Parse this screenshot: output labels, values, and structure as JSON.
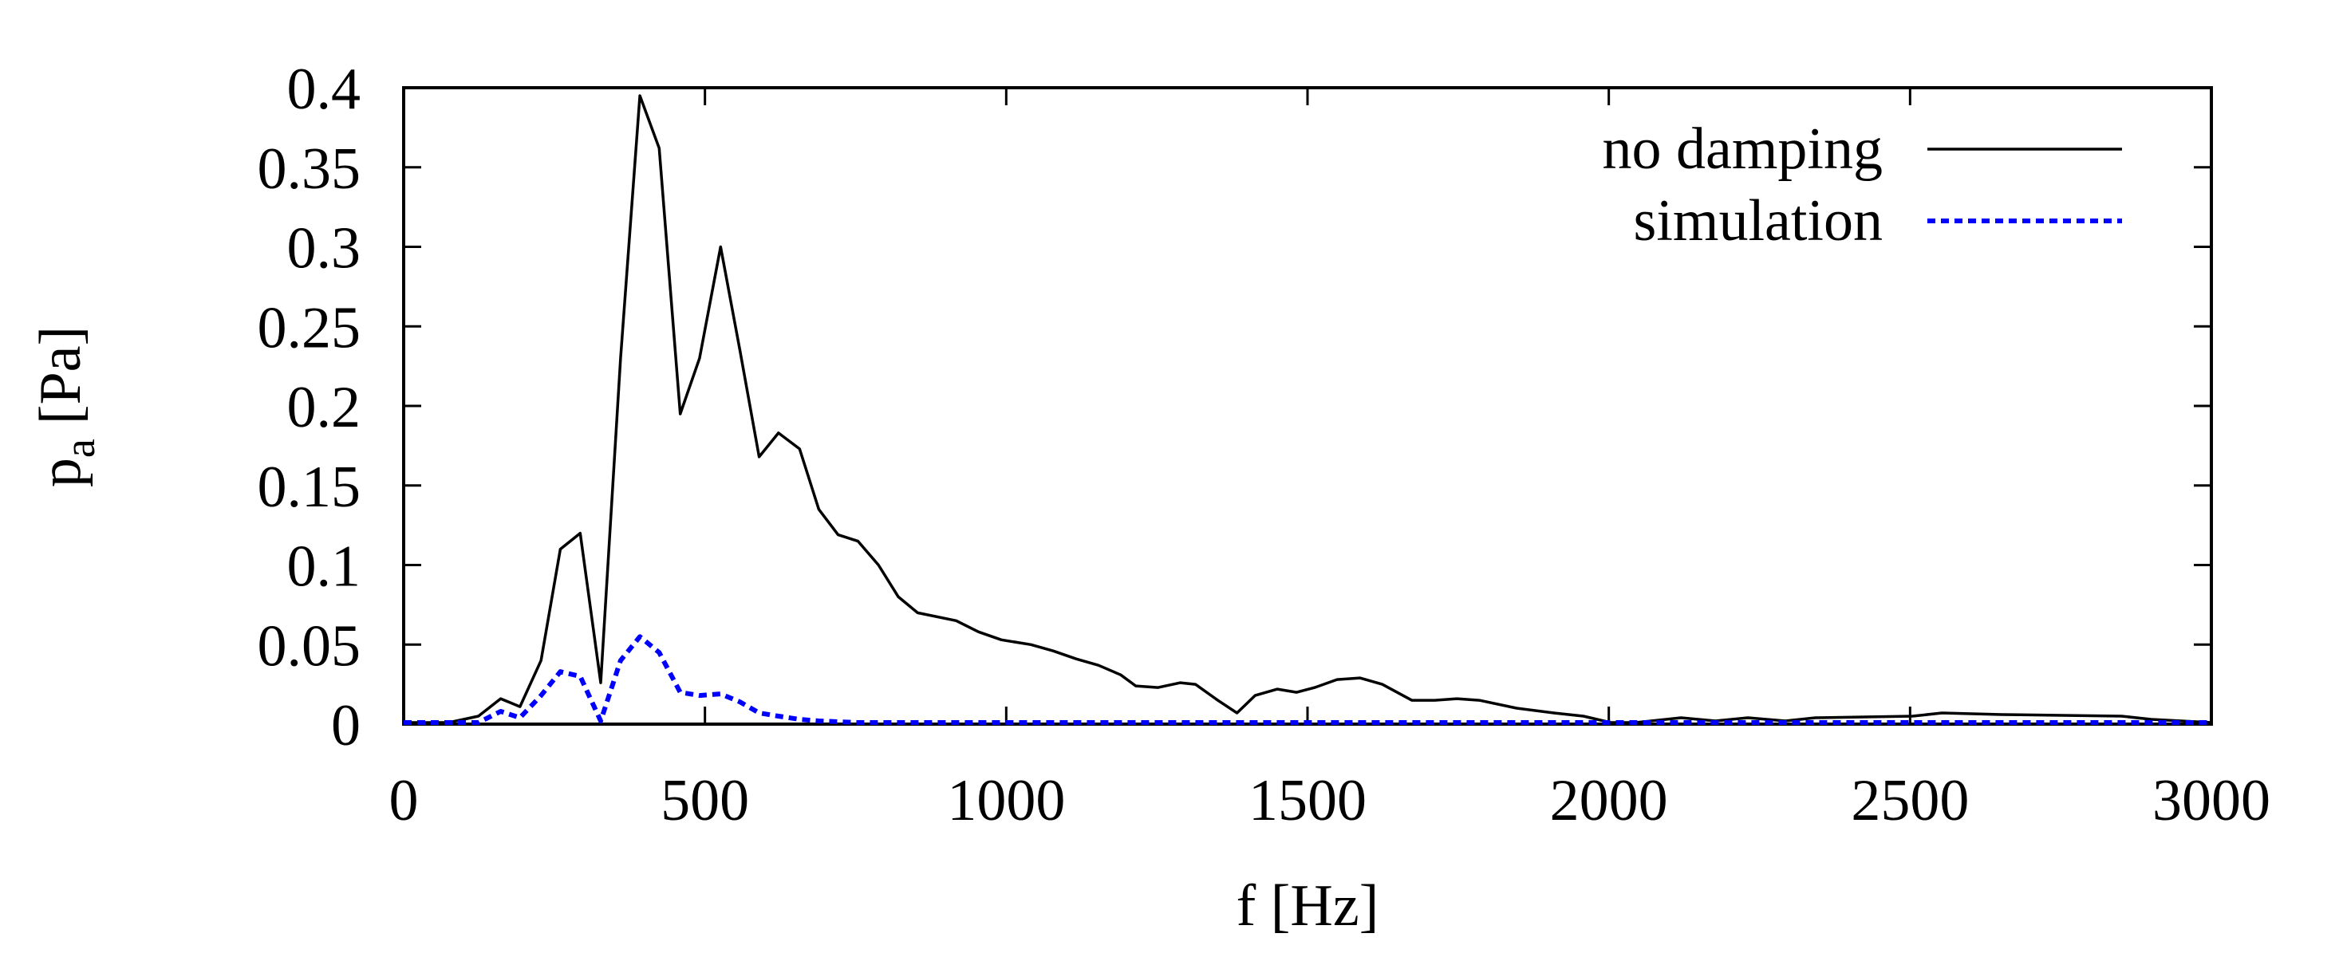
{
  "chart_data": {
    "type": "line",
    "x_label": "f [Hz]",
    "y_label": "p",
    "y_label_sub": "a",
    "y_label_unit": "[Pa]",
    "xlim": [
      0,
      3000
    ],
    "xticks": [
      0,
      500,
      1000,
      1500,
      2000,
      2500,
      3000
    ],
    "ylim": [
      0,
      0.4
    ],
    "yticks": [
      0,
      0.05,
      0.1,
      0.15,
      0.2,
      0.25,
      0.3,
      0.35,
      0.4
    ],
    "legend": "top-right",
    "series": [
      {
        "name": "no damping",
        "color": "#000000",
        "dash": "solid",
        "x": [
          0,
          75,
          124,
          161,
          193,
          228,
          260,
          293,
          327,
          360,
          392,
          424,
          459,
          491,
          526,
          558,
          590,
          622,
          657,
          689,
          721,
          754,
          788,
          821,
          853,
          917,
          954,
          992,
          1041,
          1078,
          1116,
          1153,
          1190,
          1215,
          1252,
          1289,
          1314,
          1351,
          1383,
          1413,
          1450,
          1482,
          1512,
          1549,
          1587,
          1624,
          1673,
          1711,
          1748,
          1785,
          1847,
          1909,
          1958,
          2003,
          2045,
          2120,
          2177,
          2231,
          2293,
          2343,
          2504,
          2553,
          2652,
          2851,
          2900,
          3000
        ],
        "values": [
          0.001,
          0.001,
          0.005,
          0.016,
          0.011,
          0.04,
          0.11,
          0.12,
          0.026,
          0.23,
          0.395,
          0.362,
          0.195,
          0.23,
          0.3,
          0.235,
          0.168,
          0.183,
          0.173,
          0.135,
          0.119,
          0.115,
          0.1,
          0.08,
          0.07,
          0.065,
          0.058,
          0.053,
          0.05,
          0.046,
          0.041,
          0.037,
          0.031,
          0.024,
          0.023,
          0.026,
          0.025,
          0.015,
          0.007,
          0.018,
          0.022,
          0.02,
          0.023,
          0.028,
          0.029,
          0.025,
          0.015,
          0.015,
          0.016,
          0.015,
          0.01,
          0.007,
          0.005,
          0.001,
          0.001,
          0.004,
          0.002,
          0.004,
          0.002,
          0.004,
          0.005,
          0.007,
          0.006,
          0.005,
          0.003,
          0.001
        ]
      },
      {
        "name": "simulation",
        "color": "#0000ff",
        "dash": "dotted",
        "x": [
          0,
          124,
          161,
          193,
          228,
          260,
          293,
          327,
          360,
          392,
          424,
          459,
          491,
          526,
          558,
          590,
          622,
          657,
          689,
          754,
          1000,
          2000,
          3000
        ],
        "values": [
          0.001,
          0.001,
          0.008,
          0.004,
          0.018,
          0.033,
          0.03,
          0.002,
          0.04,
          0.055,
          0.045,
          0.02,
          0.018,
          0.019,
          0.014,
          0.007,
          0.005,
          0.003,
          0.002,
          0.001,
          0.001,
          0.001,
          0.001
        ]
      }
    ]
  }
}
